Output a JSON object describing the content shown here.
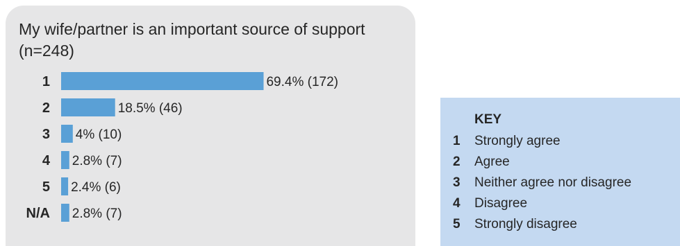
{
  "chart_data": {
    "type": "bar",
    "orientation": "horizontal",
    "title": "My wife/partner is an important source of support",
    "subtitle": "(n=248)",
    "categories": [
      "1",
      "2",
      "3",
      "4",
      "5",
      "N/A"
    ],
    "values": [
      69.4,
      18.5,
      4,
      2.8,
      2.4,
      2.8
    ],
    "counts": [
      172,
      46,
      10,
      7,
      6,
      7
    ],
    "data_labels": [
      "69.4% (172)",
      "18.5% (46)",
      "4% (10)",
      "2.8% (7)",
      "2.4% (6)",
      "2.8% (7)"
    ],
    "bar_color": "#5aa0d6",
    "grid": false
  },
  "key": {
    "title": "KEY",
    "items": [
      {
        "num": "1",
        "label": "Strongly agree"
      },
      {
        "num": "2",
        "label": "Agree"
      },
      {
        "num": "3",
        "label": "Neither agree nor disagree"
      },
      {
        "num": "4",
        "label": "Disagree"
      },
      {
        "num": "5",
        "label": "Strongly disagree"
      }
    ]
  },
  "colors": {
    "panel_background": "#e6e6e7",
    "key_background": "#c4d9f1"
  }
}
